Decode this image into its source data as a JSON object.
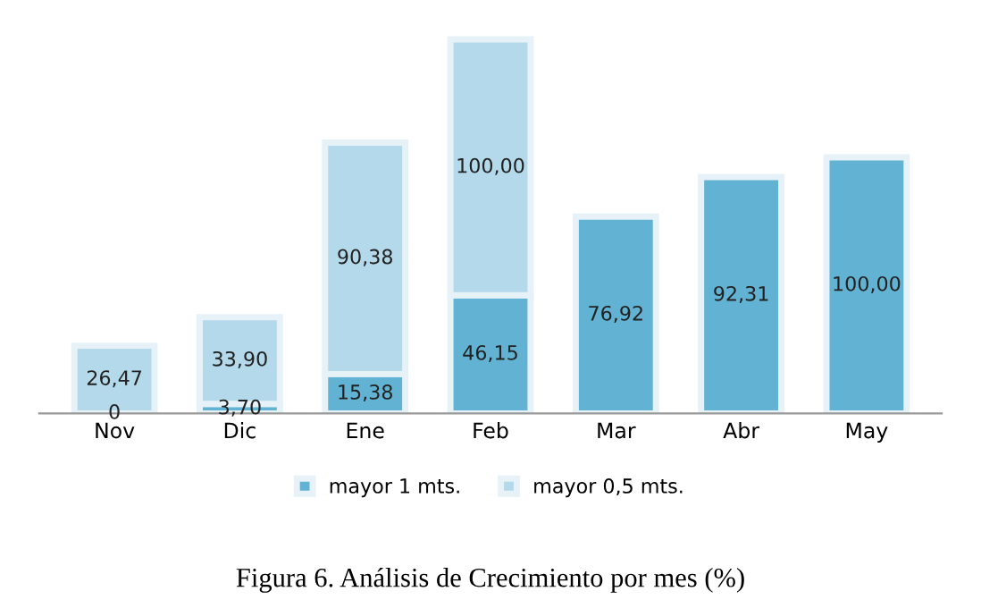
{
  "chart_data": {
    "type": "bar",
    "stacked": true,
    "title": "Figura 6. Análisis de Crecimiento por mes (%)",
    "categories": [
      "Nov",
      "Dic",
      "Ene",
      "Feb",
      "Mar",
      "Abr",
      "May"
    ],
    "series": [
      {
        "name": "mayor 1 mts.",
        "color": "#62b3d3",
        "values": [
          0,
          3.7,
          15.38,
          46.15,
          76.92,
          92.31,
          100.0
        ],
        "value_labels": [
          "0",
          "3,70",
          "15,38",
          "46,15",
          "76,92",
          "92,31",
          "100,00"
        ]
      },
      {
        "name": "mayor 0,5 mts.",
        "color": "#b3d9ea",
        "values": [
          26.47,
          33.9,
          90.38,
          100.0,
          null,
          null,
          null
        ],
        "value_labels": [
          "26,47",
          "33,90",
          "90,38",
          "100,00",
          null,
          null,
          null
        ]
      }
    ],
    "legend": "bottom"
  }
}
